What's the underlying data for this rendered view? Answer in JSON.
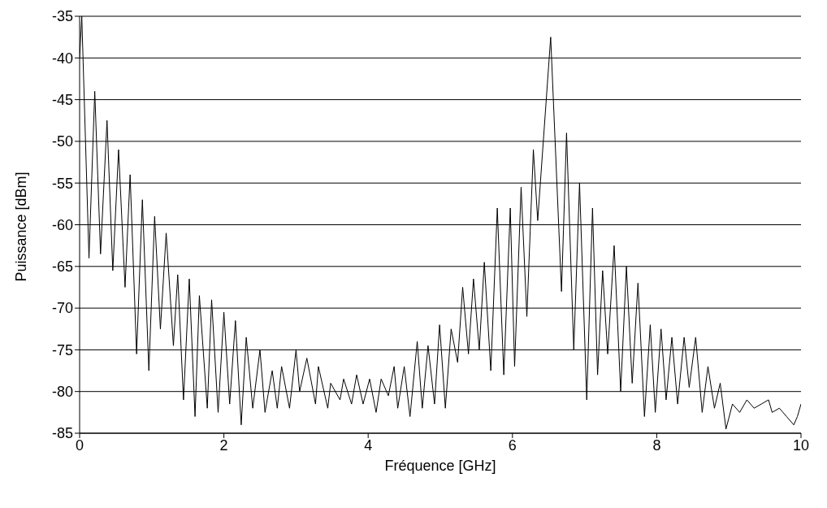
{
  "chart_data": {
    "type": "line",
    "xlabel": "Fréquence [GHz]",
    "ylabel": "Puissance [dBm]",
    "xlim": [
      0,
      10
    ],
    "xticks": [
      0,
      2,
      4,
      6,
      8,
      10
    ],
    "ylim": [
      -85,
      -35
    ],
    "yticks": [
      -85,
      -80,
      -75,
      -70,
      -65,
      -60,
      -55,
      -50,
      -45,
      -40,
      -35
    ],
    "grid": "y",
    "legend": false,
    "marker": "none",
    "line_style": "solid",
    "series": [
      {
        "color": "#000000",
        "x": [
          0,
          0.03,
          0.13,
          0.21,
          0.29,
          0.38,
          0.46,
          0.54,
          0.63,
          0.7,
          0.79,
          0.87,
          0.96,
          1.04,
          1.12,
          1.2,
          1.3,
          1.36,
          1.44,
          1.52,
          1.6,
          1.66,
          1.77,
          1.83,
          1.92,
          2.0,
          2.08,
          2.16,
          2.24,
          2.31,
          2.4,
          2.5,
          2.57,
          2.67,
          2.74,
          2.8,
          2.91,
          3.0,
          3.05,
          3.15,
          3.27,
          3.31,
          3.44,
          3.48,
          3.61,
          3.66,
          3.77,
          3.84,
          3.93,
          4.02,
          4.11,
          4.18,
          4.28,
          4.36,
          4.41,
          4.5,
          4.58,
          4.68,
          4.75,
          4.83,
          4.92,
          4.99,
          5.07,
          5.15,
          5.24,
          5.31,
          5.39,
          5.46,
          5.54,
          5.61,
          5.7,
          5.79,
          5.88,
          5.97,
          6.03,
          6.12,
          6.2,
          6.29,
          6.35,
          6.53,
          6.68,
          6.75,
          6.85,
          6.93,
          7.03,
          7.11,
          7.18,
          7.25,
          7.32,
          7.41,
          7.5,
          7.58,
          7.66,
          7.74,
          7.83,
          7.91,
          7.98,
          8.06,
          8.13,
          8.21,
          8.29,
          8.38,
          8.45,
          8.54,
          8.63,
          8.71,
          8.8,
          8.88,
          8.96,
          9.05,
          9.15,
          9.25,
          9.35,
          9.45,
          9.55,
          9.6,
          9.7,
          9.8,
          9.9,
          9.95,
          10
        ],
        "values": [
          -40,
          -35,
          -64,
          -44,
          -63.5,
          -47.5,
          -65.5,
          -51,
          -67.5,
          -54,
          -75.5,
          -57,
          -77.5,
          -59,
          -72.5,
          -61,
          -74.5,
          -66,
          -81,
          -66.5,
          -83,
          -68.5,
          -82,
          -69,
          -82.5,
          -70.5,
          -81.5,
          -71.5,
          -84,
          -73.5,
          -82,
          -75,
          -82.5,
          -77.5,
          -82,
          -77,
          -82,
          -75,
          -80,
          -76,
          -81.5,
          -77,
          -82,
          -79,
          -81,
          -78.5,
          -81.5,
          -78,
          -81.5,
          -78.5,
          -82.5,
          -78.5,
          -80.5,
          -77,
          -82,
          -77,
          -83,
          -74,
          -82,
          -74.5,
          -81.5,
          -72,
          -82,
          -72.5,
          -76.5,
          -67.5,
          -75.5,
          -66.5,
          -75,
          -64.5,
          -77.5,
          -58,
          -78,
          -58,
          -77,
          -55.5,
          -71,
          -51,
          -59.5,
          -37.5,
          -68,
          -49,
          -75,
          -55,
          -81,
          -58,
          -78,
          -65.5,
          -75.5,
          -62.5,
          -80,
          -65,
          -79,
          -67,
          -83,
          -72,
          -82.5,
          -72.5,
          -81,
          -73.5,
          -81.5,
          -73.5,
          -79.5,
          -73.5,
          -82.5,
          -77,
          -82,
          -79,
          -84.5,
          -81.5,
          -82.5,
          -81,
          -82,
          -81.5,
          -81,
          -82.5,
          -82,
          -83,
          -84,
          -83,
          -81.5
        ]
      }
    ]
  }
}
